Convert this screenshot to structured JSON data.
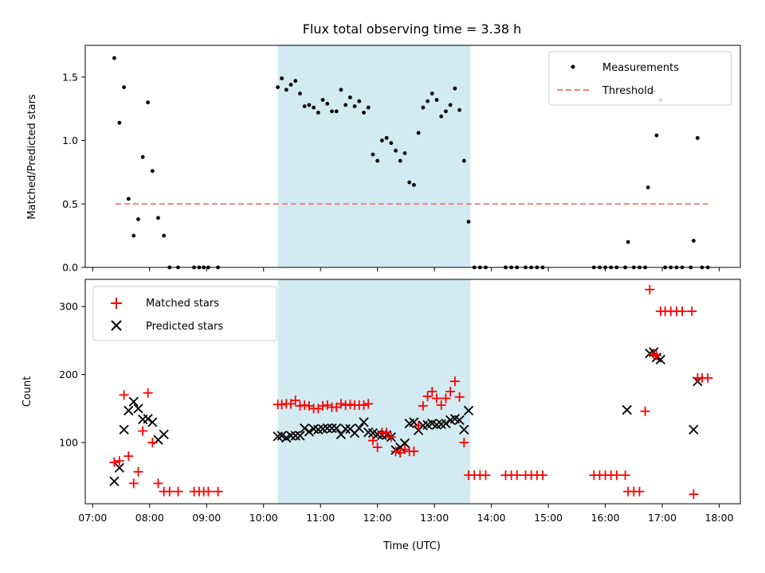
{
  "chart_data": {
    "type": "scatter",
    "title": "Flux total observing time = 3.38 h",
    "xlabel": "Time (UTC)",
    "x_units": "hours (UTC)",
    "xlim": [
      6.87,
      18.37
    ],
    "x_ticks": [
      {
        "value": 7,
        "label": "07:00"
      },
      {
        "value": 8,
        "label": "08:00"
      },
      {
        "value": 9,
        "label": "09:00"
      },
      {
        "value": 10,
        "label": "10:00"
      },
      {
        "value": 11,
        "label": "11:00"
      },
      {
        "value": 12,
        "label": "12:00"
      },
      {
        "value": 13,
        "label": "13:00"
      },
      {
        "value": 14,
        "label": "14:00"
      },
      {
        "value": 15,
        "label": "15:00"
      },
      {
        "value": 16,
        "label": "16:00"
      },
      {
        "value": 17,
        "label": "17:00"
      },
      {
        "value": 18,
        "label": "18:00"
      }
    ],
    "shaded_interval": {
      "start": 10.25,
      "end": 13.63,
      "color": "#add8e6"
    },
    "top": {
      "ylabel": "Matched/Predicted stars",
      "ylim": [
        0,
        1.75
      ],
      "y_ticks": [
        {
          "value": 0,
          "label": "0.0"
        },
        {
          "value": 0.5,
          "label": "0.5"
        },
        {
          "value": 1.0,
          "label": "1.0"
        },
        {
          "value": 1.5,
          "label": "1.5"
        }
      ],
      "legend": [
        "Measurements",
        "Threshold"
      ],
      "threshold": {
        "name": "Threshold",
        "value": 0.5,
        "x_range": [
          7.4,
          17.8
        ],
        "color": "#f08080"
      },
      "measurements": {
        "name": "Measurements",
        "color": "#000000",
        "points": [
          [
            7.38,
            1.65
          ],
          [
            7.47,
            1.14
          ],
          [
            7.55,
            1.42
          ],
          [
            7.63,
            0.54
          ],
          [
            7.72,
            0.25
          ],
          [
            7.8,
            0.38
          ],
          [
            7.88,
            0.87
          ],
          [
            7.97,
            1.3
          ],
          [
            8.05,
            0.76
          ],
          [
            8.15,
            0.39
          ],
          [
            8.25,
            0.25
          ],
          [
            8.35,
            0
          ],
          [
            8.5,
            0
          ],
          [
            8.78,
            0
          ],
          [
            8.87,
            0
          ],
          [
            8.95,
            0
          ],
          [
            9.03,
            0
          ],
          [
            9.2,
            0
          ],
          [
            10.25,
            1.42
          ],
          [
            10.32,
            1.49
          ],
          [
            10.4,
            1.4
          ],
          [
            10.48,
            1.44
          ],
          [
            10.56,
            1.47
          ],
          [
            10.64,
            1.37
          ],
          [
            10.72,
            1.27
          ],
          [
            10.8,
            1.28
          ],
          [
            10.88,
            1.26
          ],
          [
            10.96,
            1.22
          ],
          [
            11.04,
            1.32
          ],
          [
            11.12,
            1.29
          ],
          [
            11.2,
            1.23
          ],
          [
            11.28,
            1.23
          ],
          [
            11.36,
            1.4
          ],
          [
            11.44,
            1.28
          ],
          [
            11.52,
            1.34
          ],
          [
            11.6,
            1.27
          ],
          [
            11.68,
            1.31
          ],
          [
            11.76,
            1.22
          ],
          [
            11.84,
            1.26
          ],
          [
            11.92,
            0.89
          ],
          [
            12.0,
            0.84
          ],
          [
            12.08,
            1.0
          ],
          [
            12.16,
            1.02
          ],
          [
            12.24,
            0.98
          ],
          [
            12.32,
            0.92
          ],
          [
            12.4,
            0.84
          ],
          [
            12.48,
            0.9
          ],
          [
            12.56,
            0.67
          ],
          [
            12.64,
            0.65
          ],
          [
            12.72,
            1.06
          ],
          [
            12.8,
            1.26
          ],
          [
            12.88,
            1.31
          ],
          [
            12.96,
            1.37
          ],
          [
            13.04,
            1.32
          ],
          [
            13.12,
            1.19
          ],
          [
            13.2,
            1.23
          ],
          [
            13.28,
            1.28
          ],
          [
            13.36,
            1.41
          ],
          [
            13.44,
            1.24
          ],
          [
            13.52,
            0.84
          ],
          [
            13.6,
            0.36
          ],
          [
            13.7,
            0
          ],
          [
            13.8,
            0
          ],
          [
            13.9,
            0
          ],
          [
            14.25,
            0
          ],
          [
            14.35,
            0
          ],
          [
            14.45,
            0
          ],
          [
            14.6,
            0
          ],
          [
            14.7,
            0
          ],
          [
            14.8,
            0
          ],
          [
            14.9,
            0
          ],
          [
            15.8,
            0
          ],
          [
            15.9,
            0
          ],
          [
            16.0,
            0
          ],
          [
            16.1,
            0
          ],
          [
            16.2,
            0
          ],
          [
            16.35,
            0
          ],
          [
            16.4,
            0.2
          ],
          [
            16.5,
            0
          ],
          [
            16.6,
            0
          ],
          [
            16.7,
            0
          ],
          [
            16.75,
            0.63
          ],
          [
            16.85,
            1.39
          ],
          [
            16.9,
            1.04
          ],
          [
            16.97,
            1.32
          ],
          [
            17.05,
            0
          ],
          [
            17.15,
            0
          ],
          [
            17.25,
            0
          ],
          [
            17.35,
            0
          ],
          [
            17.5,
            0
          ],
          [
            17.55,
            0.21
          ],
          [
            17.62,
            1.02
          ],
          [
            17.7,
            0
          ],
          [
            17.8,
            0
          ]
        ]
      }
    },
    "bottom": {
      "ylabel": "Count",
      "ylim": [
        10,
        340
      ],
      "y_ticks": [
        {
          "value": 100,
          "label": "100"
        },
        {
          "value": 200,
          "label": "200"
        },
        {
          "value": 300,
          "label": "300"
        }
      ],
      "legend": [
        "Matched stars",
        "Predicted stars"
      ],
      "series": [
        {
          "name": "Matched stars",
          "marker": "+",
          "color": "#ff0000",
          "points": [
            [
              7.38,
              71
            ],
            [
              7.47,
              73
            ],
            [
              7.55,
              170
            ],
            [
              7.63,
              80
            ],
            [
              7.72,
              40
            ],
            [
              7.8,
              57
            ],
            [
              7.88,
              117
            ],
            [
              7.97,
              173
            ],
            [
              8.05,
              100
            ],
            [
              8.15,
              40
            ],
            [
              8.25,
              28
            ],
            [
              8.35,
              28
            ],
            [
              8.5,
              28
            ],
            [
              8.78,
              28
            ],
            [
              8.87,
              28
            ],
            [
              8.95,
              28
            ],
            [
              9.03,
              28
            ],
            [
              9.2,
              28
            ],
            [
              10.25,
              156
            ],
            [
              10.32,
              156
            ],
            [
              10.4,
              157
            ],
            [
              10.48,
              157
            ],
            [
              10.56,
              162
            ],
            [
              10.64,
              154
            ],
            [
              10.72,
              155
            ],
            [
              10.8,
              154
            ],
            [
              10.88,
              150
            ],
            [
              10.96,
              150
            ],
            [
              11.04,
              154
            ],
            [
              11.12,
              155
            ],
            [
              11.2,
              152
            ],
            [
              11.28,
              152
            ],
            [
              11.36,
              157
            ],
            [
              11.44,
              155
            ],
            [
              11.52,
              156
            ],
            [
              11.6,
              155
            ],
            [
              11.68,
              155
            ],
            [
              11.76,
              155
            ],
            [
              11.84,
              157
            ],
            [
              11.92,
              103
            ],
            [
              12.0,
              93
            ],
            [
              12.08,
              115
            ],
            [
              12.16,
              115
            ],
            [
              12.24,
              108
            ],
            [
              12.32,
              87
            ],
            [
              12.4,
              85
            ],
            [
              12.48,
              90
            ],
            [
              12.56,
              87
            ],
            [
              12.64,
              87
            ],
            [
              12.72,
              125
            ],
            [
              12.8,
              154
            ],
            [
              12.88,
              168
            ],
            [
              12.96,
              175
            ],
            [
              13.04,
              165
            ],
            [
              13.12,
              155
            ],
            [
              13.2,
              165
            ],
            [
              13.28,
              175
            ],
            [
              13.36,
              190
            ],
            [
              13.44,
              167
            ],
            [
              13.52,
              100
            ],
            [
              13.6,
              52
            ],
            [
              13.7,
              52
            ],
            [
              13.8,
              52
            ],
            [
              13.9,
              52
            ],
            [
              14.25,
              52
            ],
            [
              14.35,
              52
            ],
            [
              14.45,
              52
            ],
            [
              14.6,
              52
            ],
            [
              14.7,
              52
            ],
            [
              14.8,
              52
            ],
            [
              14.9,
              52
            ],
            [
              15.8,
              52
            ],
            [
              15.9,
              52
            ],
            [
              16.0,
              52
            ],
            [
              16.1,
              52
            ],
            [
              16.2,
              52
            ],
            [
              16.35,
              52
            ],
            [
              16.4,
              28
            ],
            [
              16.5,
              28
            ],
            [
              16.6,
              28
            ],
            [
              16.7,
              146
            ],
            [
              16.78,
              325
            ],
            [
              16.85,
              230
            ],
            [
              16.9,
              228
            ],
            [
              16.97,
              293
            ],
            [
              17.05,
              293
            ],
            [
              17.15,
              293
            ],
            [
              17.25,
              293
            ],
            [
              17.35,
              293
            ],
            [
              17.52,
              293
            ],
            [
              17.55,
              24
            ],
            [
              17.62,
              195
            ],
            [
              17.7,
              195
            ],
            [
              17.8,
              195
            ]
          ]
        },
        {
          "name": "Predicted stars",
          "marker": "x",
          "color": "#000000",
          "points": [
            [
              7.38,
              43
            ],
            [
              7.47,
              63
            ],
            [
              7.55,
              119
            ],
            [
              7.63,
              147
            ],
            [
              7.72,
              160
            ],
            [
              7.8,
              150
            ],
            [
              7.88,
              134
            ],
            [
              7.97,
              135
            ],
            [
              8.05,
              130
            ],
            [
              8.15,
              104
            ],
            [
              8.25,
              112
            ],
            [
              10.25,
              109
            ],
            [
              10.32,
              110
            ],
            [
              10.4,
              107
            ],
            [
              10.48,
              110
            ],
            [
              10.56,
              110
            ],
            [
              10.64,
              110
            ],
            [
              10.72,
              121
            ],
            [
              10.8,
              116
            ],
            [
              10.88,
              120
            ],
            [
              10.96,
              119
            ],
            [
              11.04,
              120
            ],
            [
              11.12,
              121
            ],
            [
              11.2,
              121
            ],
            [
              11.28,
              121
            ],
            [
              11.36,
              112
            ],
            [
              11.44,
              120
            ],
            [
              11.52,
              120
            ],
            [
              11.6,
              114
            ],
            [
              11.68,
              121
            ],
            [
              11.76,
              130
            ],
            [
              11.84,
              115
            ],
            [
              11.92,
              114
            ],
            [
              12.0,
              112
            ],
            [
              12.08,
              111
            ],
            [
              12.16,
              111
            ],
            [
              12.24,
              108
            ],
            [
              12.32,
              89
            ],
            [
              12.4,
              93
            ],
            [
              12.48,
              99
            ],
            [
              12.56,
              128
            ],
            [
              12.64,
              130
            ],
            [
              12.72,
              118
            ],
            [
              12.8,
              125
            ],
            [
              12.88,
              126
            ],
            [
              12.96,
              128
            ],
            [
              13.04,
              126
            ],
            [
              13.12,
              127
            ],
            [
              13.2,
              128
            ],
            [
              13.28,
              133
            ],
            [
              13.36,
              135
            ],
            [
              13.44,
              133
            ],
            [
              13.52,
              119
            ],
            [
              13.6,
              147
            ],
            [
              16.38,
              148
            ],
            [
              16.78,
              231
            ],
            [
              16.85,
              233
            ],
            [
              16.9,
              225
            ],
            [
              16.97,
              222
            ],
            [
              17.55,
              119
            ],
            [
              17.62,
              190
            ]
          ]
        }
      ]
    }
  }
}
